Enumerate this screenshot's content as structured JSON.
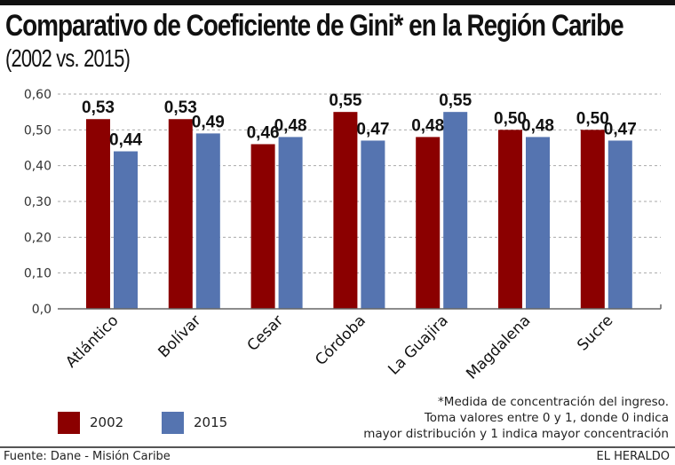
{
  "header": {
    "title": "Comparativo de Coeficiente de Gini* en la Región Caribe",
    "subtitle": "(2002 vs. 2015)"
  },
  "colors": {
    "series_2002": "#8b0000",
    "series_2015": "#5574b0",
    "gridline": "#aaaaaa",
    "axis": "#666666"
  },
  "chart_data": {
    "type": "bar",
    "title": "Comparativo de Coeficiente de Gini* en la Región Caribe",
    "subtitle": "(2002 vs. 2015)",
    "xlabel": "",
    "ylabel": "",
    "ylim": [
      0,
      0.6
    ],
    "yticks": [
      0,
      0.1,
      0.2,
      0.3,
      0.4,
      0.5,
      0.6
    ],
    "ytick_labels": [
      "0,0",
      "0,10",
      "0,20",
      "0,30",
      "0,40",
      "0,50",
      "0,60"
    ],
    "grid": true,
    "legend_position": "bottom-left",
    "categories": [
      "Atlántico",
      "Bolívar",
      "Cesar",
      "Córdoba",
      "La Guajira",
      "Magdalena",
      "Sucre"
    ],
    "series": [
      {
        "name": "2002",
        "values": [
          0.53,
          0.53,
          0.46,
          0.55,
          0.48,
          0.5,
          0.5
        ],
        "labels": [
          "0,53",
          "0,53",
          "0,46",
          "0,55",
          "0,48",
          "0,50",
          "0,50"
        ]
      },
      {
        "name": "2015",
        "values": [
          0.44,
          0.49,
          0.48,
          0.47,
          0.55,
          0.48,
          0.47
        ],
        "labels": [
          "0,44",
          "0,49",
          "0,48",
          "0,47",
          "0,55",
          "0,48",
          "0,47"
        ]
      }
    ]
  },
  "legend": {
    "items": [
      {
        "label": "2002"
      },
      {
        "label": "2015"
      }
    ]
  },
  "footnote": {
    "lines": [
      "*Medida de concentración del ingreso.",
      "Toma valores entre 0 y 1, donde 0 indica",
      "mayor distribución y 1 indica mayor concentración"
    ]
  },
  "footer": {
    "source": "Fuente: Dane - Misión Caribe",
    "brand": "EL HERALDO"
  }
}
